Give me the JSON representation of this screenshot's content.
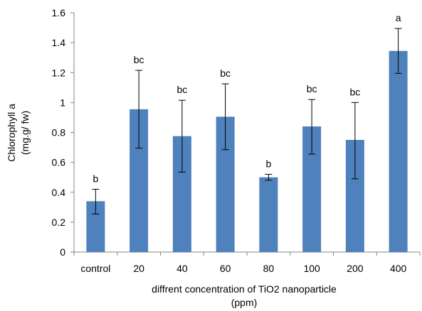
{
  "chart_data": {
    "type": "bar",
    "categories": [
      "control",
      "20",
      "40",
      "60",
      "80",
      "100",
      "200",
      "400"
    ],
    "values": [
      0.34,
      0.955,
      0.775,
      0.905,
      0.5,
      0.84,
      0.75,
      1.345
    ],
    "error_upper": [
      0.42,
      1.215,
      1.015,
      1.125,
      0.52,
      1.02,
      1.0,
      1.495
    ],
    "error_lower": [
      0.255,
      0.695,
      0.535,
      0.685,
      0.48,
      0.655,
      0.49,
      1.195
    ],
    "significance_labels": [
      "b",
      "bc",
      "bc",
      "bc",
      "b",
      "bc",
      "bc",
      "a"
    ],
    "xlabel_line1": "diffrent concentration of TiO2 nanoparticle",
    "xlabel_line2": "(ppm)",
    "ylabel_line1": "Chlorophyll a",
    "ylabel_line2": "(mg.g/ fw)",
    "ylim": [
      0,
      1.6
    ],
    "yticks": [
      0,
      0.2,
      0.4,
      0.6,
      0.8,
      1,
      1.2,
      1.4,
      1.6
    ],
    "ytick_labels": [
      "0",
      "0.2",
      "0.4",
      "0.6",
      "0.8",
      "1",
      "1.2",
      "1.4",
      "1.6"
    ],
    "bar_color": "#4f81bd",
    "grid": false,
    "legend": "none"
  }
}
